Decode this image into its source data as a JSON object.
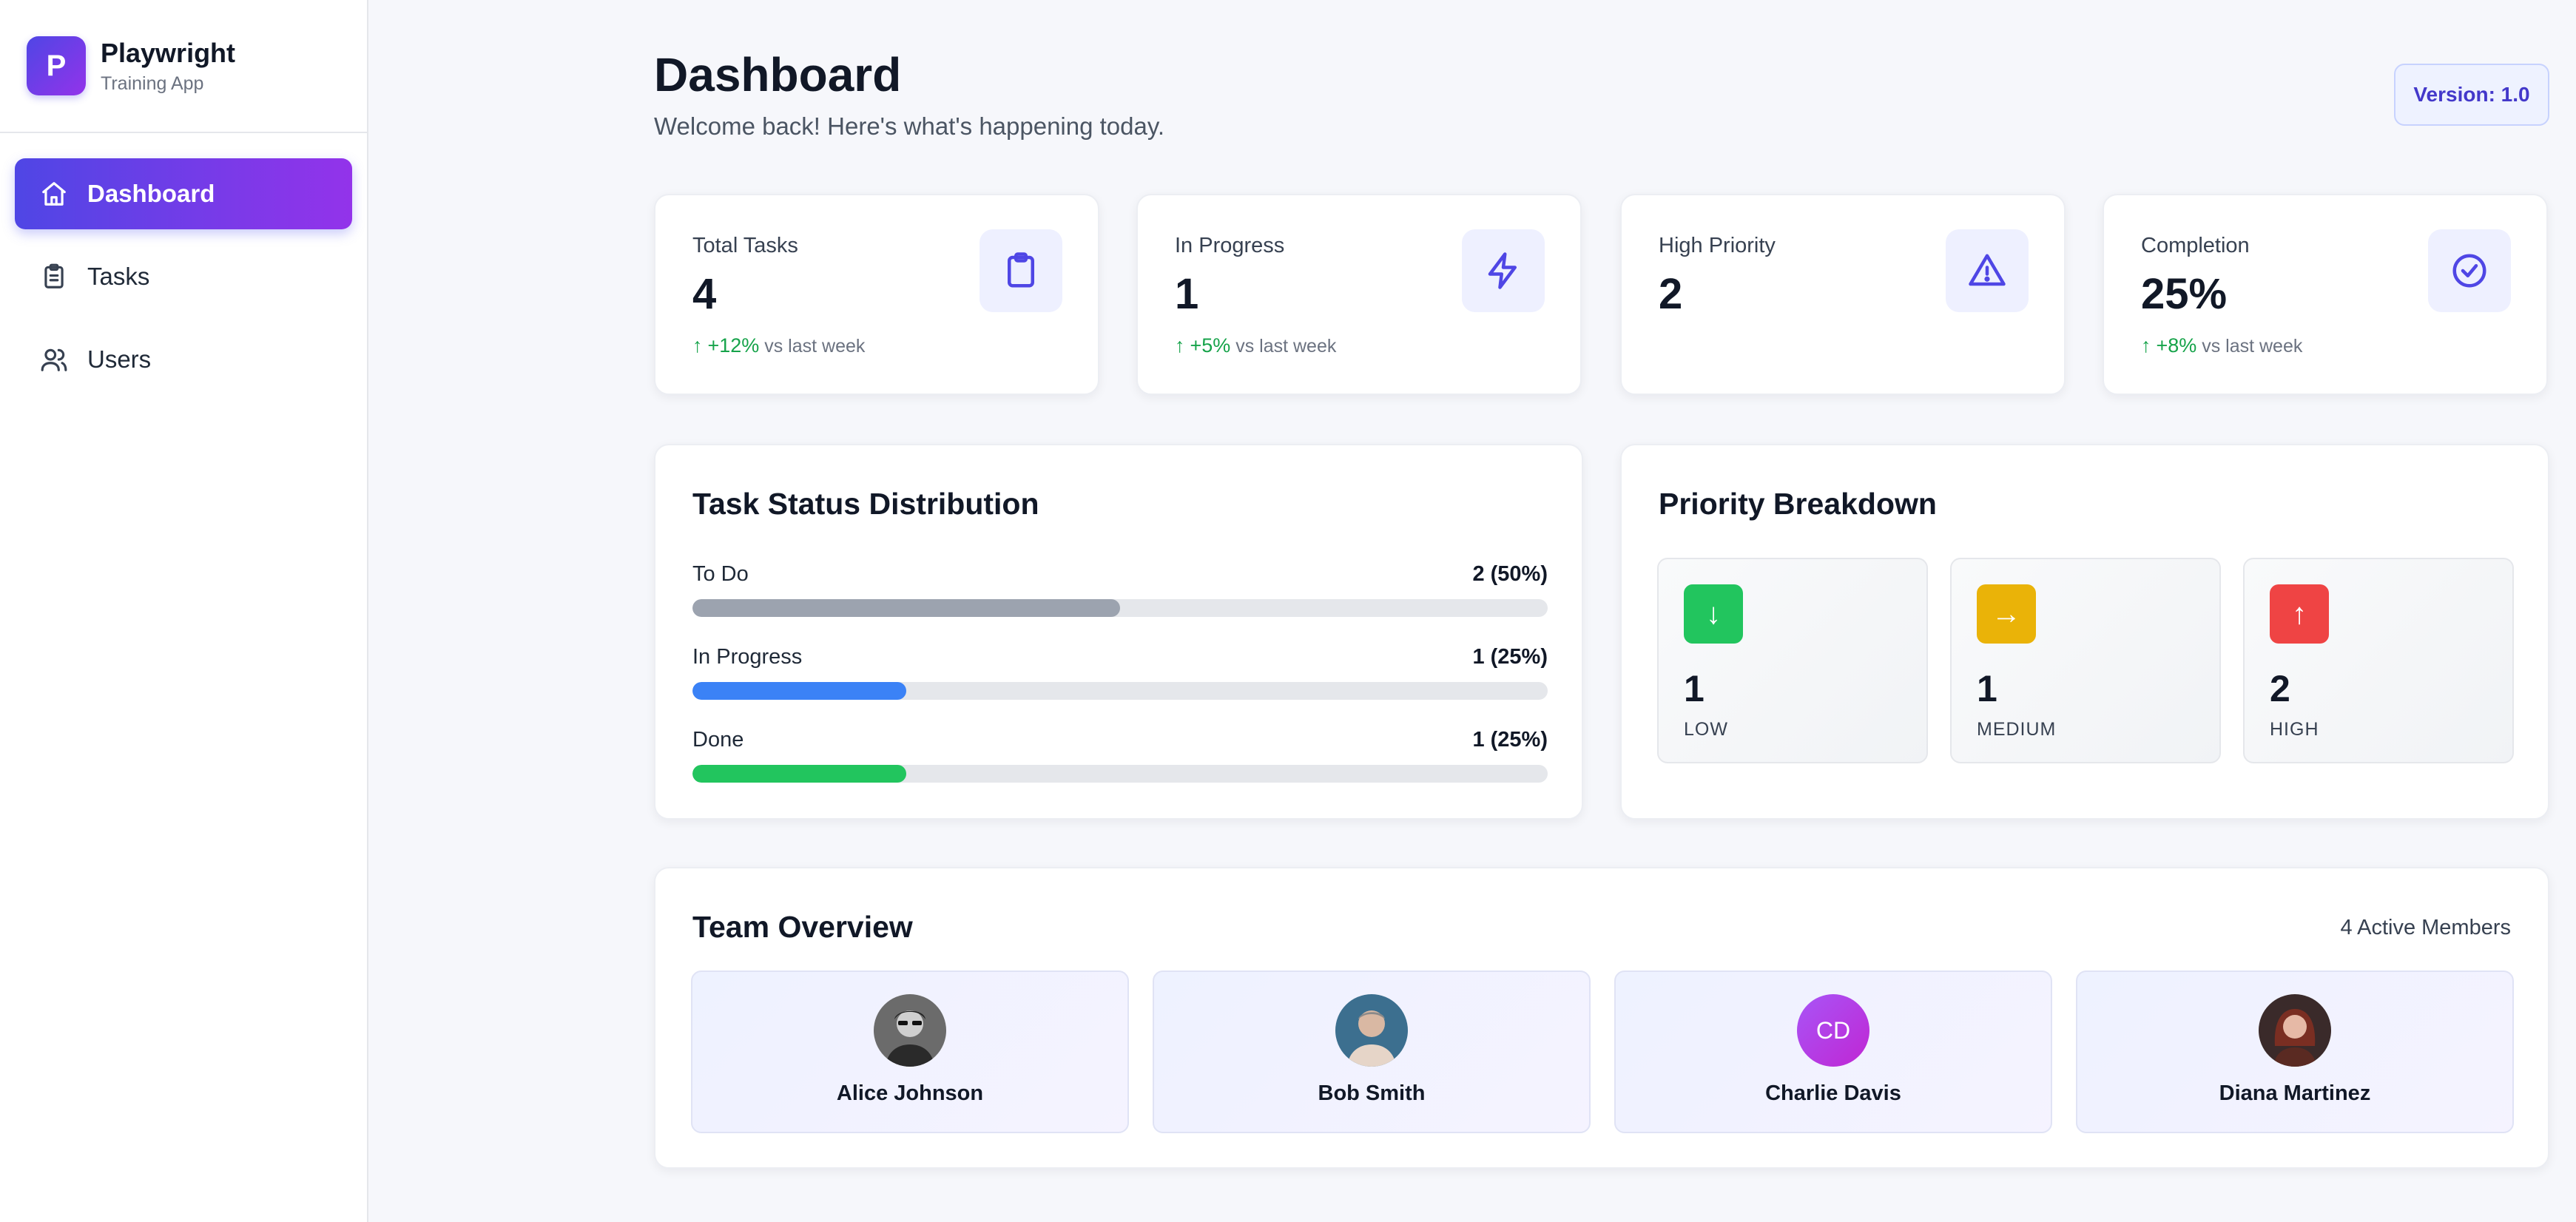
{
  "brand": {
    "logo_letter": "P",
    "title": "Playwright",
    "subtitle": "Training App"
  },
  "sidebar": {
    "items": [
      {
        "label": "Dashboard",
        "icon": "home-icon",
        "active": true
      },
      {
        "label": "Tasks",
        "icon": "clipboard-icon",
        "active": false
      },
      {
        "label": "Users",
        "icon": "users-icon",
        "active": false
      }
    ]
  },
  "header": {
    "title": "Dashboard",
    "subtitle": "Welcome back! Here's what's happening today.",
    "version": "Version: 1.0"
  },
  "stats": [
    {
      "label": "Total Tasks",
      "value": "4",
      "trend": "+12%",
      "trend_suffix": "vs last week",
      "icon": "clipboard-icon"
    },
    {
      "label": "In Progress",
      "value": "1",
      "trend": "+5%",
      "trend_suffix": "vs last week",
      "icon": "lightning-icon"
    },
    {
      "label": "High Priority",
      "value": "2",
      "icon": "warning-triangle-icon"
    },
    {
      "label": "Completion",
      "value": "25%",
      "trend": "+8%",
      "trend_suffix": "vs last week",
      "icon": "check-circle-icon"
    }
  ],
  "distribution": {
    "title": "Task Status Distribution",
    "rows": [
      {
        "label": "To Do",
        "count": "2 (50%)",
        "percent": 50,
        "color": "#9ca3af"
      },
      {
        "label": "In Progress",
        "count": "1 (25%)",
        "percent": 25,
        "color": "#3b82f6"
      },
      {
        "label": "Done",
        "count": "1 (25%)",
        "percent": 25,
        "color": "#22c55e"
      }
    ]
  },
  "priority": {
    "title": "Priority Breakdown",
    "items": [
      {
        "arrow": "↓",
        "count": "1",
        "label": "LOW",
        "color": "#22c55e"
      },
      {
        "arrow": "→",
        "count": "1",
        "label": "MEDIUM",
        "color": "#eab308"
      },
      {
        "arrow": "↑",
        "count": "2",
        "label": "HIGH",
        "color": "#ef4444"
      }
    ]
  },
  "team": {
    "title": "Team Overview",
    "count_label": "4 Active Members",
    "members": [
      {
        "name": "Alice Johnson",
        "avatar_type": "photo"
      },
      {
        "name": "Bob Smith",
        "avatar_type": "photo"
      },
      {
        "name": "Charlie Davis",
        "initials": "CD",
        "avatar_type": "initials"
      },
      {
        "name": "Diana Martinez",
        "avatar_type": "photo"
      }
    ]
  }
}
